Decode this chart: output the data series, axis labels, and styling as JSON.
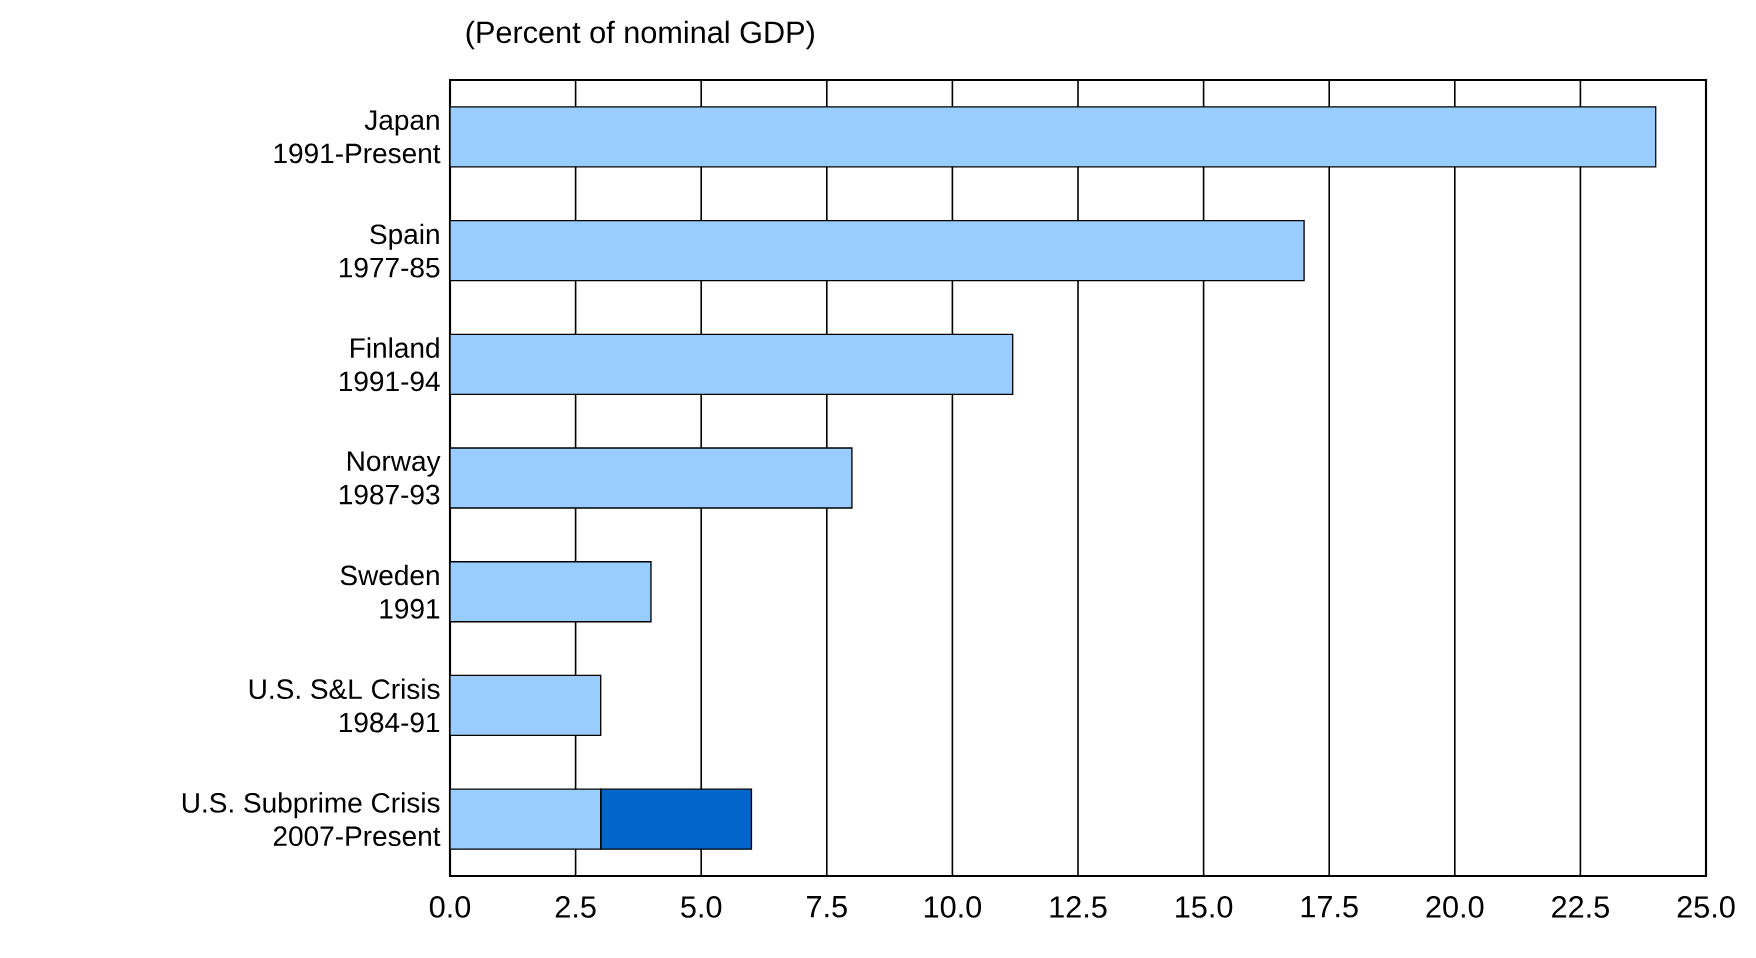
{
  "chart_data": {
    "type": "bar",
    "orientation": "horizontal",
    "stacked": true,
    "title": "(Percent of nominal GDP)",
    "categories": [
      "Japan\n1991-Present",
      "Spain\n1977-85",
      "Finland\n1991-94",
      "Norway\n1987-93",
      "Sweden\n1991",
      "U.S. S&L Crisis\n1984-91",
      "U.S. Subprime Crisis\n2007-Present"
    ],
    "series": [
      {
        "color": "#99ccff",
        "values": [
          24,
          17,
          11.2,
          8,
          4,
          3,
          3
        ]
      },
      {
        "color": "#0066cc",
        "values": [
          null,
          null,
          null,
          null,
          null,
          null,
          3
        ]
      }
    ],
    "xlim": [
      0,
      25
    ],
    "xticks": [
      {
        "value": 0,
        "label": "0.0"
      },
      2.5,
      {
        "value": 5,
        "label": "5.0"
      },
      7.5,
      {
        "value": 10,
        "label": "10.0"
      },
      12.5,
      {
        "value": 15,
        "label": "15.0"
      },
      17.5,
      {
        "value": 20,
        "label": "20.0"
      },
      22.5,
      {
        "value": 25,
        "label": "25.0"
      }
    ],
    "grid": "x"
  }
}
